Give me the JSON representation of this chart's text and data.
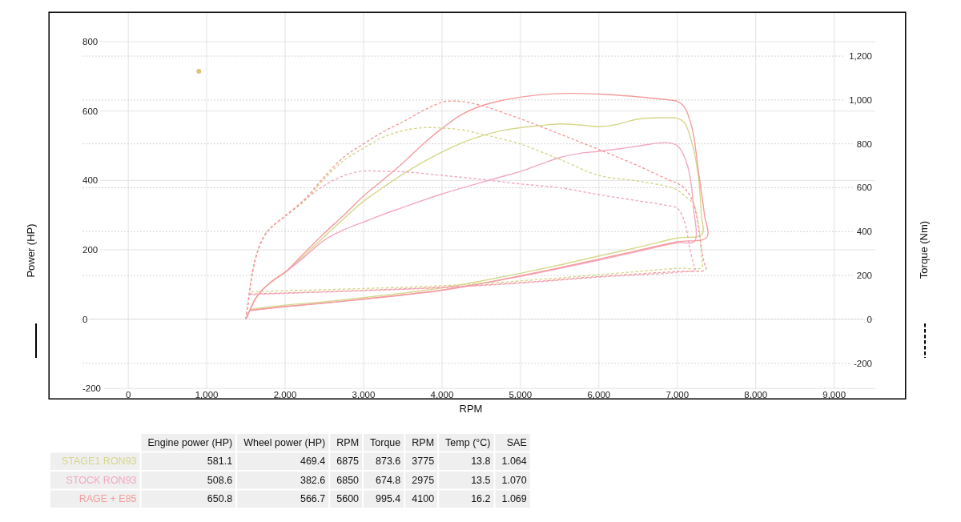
{
  "chart_data": {
    "type": "line",
    "xlabel": "RPM",
    "ylabel": "Power (HP)",
    "y2label": "Torque (Nm)",
    "xlim": [
      -1010,
      9910
    ],
    "xticks": [
      0,
      {
        "value": 1000,
        "label": "1,000"
      },
      {
        "value": 2000,
        "label": "2,000"
      },
      {
        "value": 3000,
        "label": "3,000"
      },
      {
        "value": 4000,
        "label": "4,000"
      },
      {
        "value": 5000,
        "label": "5,000"
      },
      {
        "value": 6000,
        "label": "6,000"
      },
      {
        "value": 7000,
        "label": "7,000"
      },
      {
        "value": 8000,
        "label": "8,000"
      },
      {
        "value": 9000,
        "label": "9,000"
      }
    ],
    "ylim": [
      -230,
      885
    ],
    "yticks": [
      -200,
      0,
      200,
      400,
      600,
      800
    ],
    "y2lim": [
      -363,
      1400
    ],
    "y2ticks": [
      -200,
      0,
      200,
      400,
      600,
      800,
      {
        "value": 1000,
        "label": "1,000"
      },
      {
        "value": 1200,
        "label": "1,200"
      }
    ],
    "grid": true,
    "legend": "bottom",
    "series": [
      {
        "name": "STAGE1 RON93",
        "color": "#d6d78c",
        "line_style": "solid",
        "x": [
          1500,
          1560,
          1620,
          1700,
          1800,
          1900,
          2000,
          2250,
          2500,
          2750,
          3000,
          3250,
          3500,
          3750,
          4000,
          4250,
          4500,
          4750,
          5000,
          5250,
          5500,
          5750,
          6000,
          6200,
          6500,
          6875,
          7000,
          7090,
          7190,
          7270,
          7305,
          7313,
          7000,
          6500,
          6000,
          5500,
          5000,
          4500,
          4000,
          3500,
          3000,
          2500,
          2000,
          1550
        ],
        "values": [
          0,
          30,
          58,
          82,
          103,
          120,
          135,
          185,
          238,
          290,
          340,
          380,
          418,
          452,
          482,
          508,
          528,
          543,
          552,
          558,
          563,
          560,
          555,
          560,
          577,
          581,
          579,
          567,
          505,
          408,
          302,
          244,
          234,
          207,
          182,
          156,
          132,
          110,
          90,
          75,
          62,
          50,
          40,
          28
        ]
      },
      {
        "name": "STOCK RON93",
        "color": "#f2a8c4",
        "line_style": "solid",
        "x": [
          1500,
          1560,
          1620,
          1700,
          1800,
          1900,
          2000,
          2250,
          2500,
          2750,
          3000,
          3250,
          3500,
          3750,
          4000,
          4250,
          4500,
          4750,
          5000,
          5250,
          5500,
          5750,
          6000,
          6250,
          6500,
          6850,
          7000,
          7070,
          7150,
          7207,
          7218,
          7000,
          6500,
          6000,
          5500,
          5000,
          4500,
          4000,
          3500,
          3000,
          2500,
          2000,
          1550
        ],
        "values": [
          0,
          30,
          58,
          82,
          103,
          120,
          135,
          180,
          228,
          258,
          280,
          302,
          322,
          342,
          361,
          378,
          394,
          410,
          426,
          446,
          466,
          478,
          484,
          491,
          499,
          509,
          500,
          478,
          425,
          320,
          224,
          220,
          195,
          170,
          146,
          123,
          102,
          83,
          69,
          57,
          46,
          36,
          25
        ]
      },
      {
        "name": "RAGE + E85",
        "color": "#f49c9c",
        "line_style": "solid",
        "x": [
          1500,
          1560,
          1620,
          1700,
          1800,
          1900,
          2000,
          2250,
          2500,
          2750,
          3000,
          3250,
          3500,
          3750,
          4000,
          4250,
          4500,
          4750,
          5000,
          5250,
          5600,
          6000,
          6500,
          6900,
          7000,
          7090,
          7190,
          7270,
          7345,
          7375,
          7000,
          6500,
          6000,
          5500,
          5000,
          4500,
          4000,
          3500,
          3000,
          2500,
          2000,
          1550
        ],
        "values": [
          0,
          30,
          58,
          82,
          103,
          120,
          135,
          192,
          248,
          300,
          355,
          402,
          450,
          503,
          550,
          590,
          615,
          630,
          640,
          647,
          651,
          649,
          641,
          632,
          628,
          612,
          549,
          425,
          302,
          236,
          223,
          198,
          173,
          148,
          125,
          103,
          84,
          70,
          58,
          46,
          36,
          25
        ]
      },
      {
        "color": "#d6d78c",
        "line_style": "dashed",
        "axis": "y2",
        "x": [
          1500,
          1545,
          1590,
          1660,
          1740,
          1830,
          2000,
          2250,
          2500,
          2750,
          3000,
          3250,
          3500,
          3775,
          4000,
          4250,
          4500,
          5000,
          5500,
          6000,
          6500,
          6900,
          7000,
          7100,
          7200,
          7240,
          7285,
          7310,
          7313,
          7000,
          6000,
          5000,
          4000,
          3000,
          2000,
          1550
        ],
        "values": [
          0,
          120,
          228,
          320,
          383,
          422,
          470,
          540,
          640,
          725,
          780,
          830,
          860,
          874,
          872,
          864,
          845,
          799,
          729,
          656,
          630,
          603,
          589,
          561,
          530,
          490,
          394,
          280,
          237,
          232,
          203,
          175,
          153,
          140,
          130,
          125
        ]
      },
      {
        "color": "#f2a8c4",
        "line_style": "dashed",
        "axis": "y2",
        "x": [
          1500,
          1545,
          1590,
          1660,
          1740,
          1830,
          2000,
          2250,
          2500,
          2750,
          2975,
          3250,
          3500,
          4000,
          4500,
          5000,
          5500,
          6000,
          6500,
          6850,
          7000,
          7100,
          7150,
          7207,
          7227,
          7000,
          6000,
          5000,
          4000,
          3000,
          2000,
          1550
        ],
        "values": [
          0,
          120,
          228,
          320,
          383,
          422,
          470,
          545,
          610,
          655,
          675,
          675,
          673,
          656,
          638,
          617,
          600,
          568,
          540,
          520,
          506,
          436,
          338,
          251,
          227,
          214,
          192,
          165,
          144,
          130,
          118,
          112
        ]
      },
      {
        "color": "#f49c9c",
        "line_style": "dashed",
        "axis": "y2",
        "x": [
          1500,
          1545,
          1590,
          1660,
          1740,
          1830,
          2000,
          2250,
          2500,
          2750,
          3000,
          3250,
          3500,
          3750,
          4000,
          4100,
          4250,
          4500,
          5000,
          5500,
          6000,
          6500,
          6900,
          7000,
          7100,
          7200,
          7260,
          7300,
          7340,
          7364,
          7000,
          6000,
          5000,
          4000,
          3000,
          2000,
          1550
        ],
        "values": [
          0,
          120,
          228,
          320,
          383,
          422,
          470,
          548,
          650,
          740,
          800,
          855,
          900,
          950,
          990,
          995,
          993,
          975,
          914,
          845,
          774,
          700,
          634,
          620,
          595,
          535,
          440,
          340,
          260,
          227,
          218,
          195,
          167,
          146,
          132,
          120,
          115
        ]
      },
      {
        "type": "scatter",
        "color": "#d9c47c",
        "marker": "circle",
        "x": [
          900
        ],
        "values": [
          715
        ]
      }
    ],
    "annotations": [
      "Engine power (HP)",
      "Wheel power (HP)",
      "RPM",
      "Torque",
      "RPM",
      "Temp (°C)",
      "SAE",
      "581.1",
      "469.4",
      "6875",
      "873.6",
      "3775",
      "13.8",
      "1.064",
      "508.6",
      "382.6",
      "6850",
      "674.8",
      "2975",
      "13.5",
      "1.070",
      "650.8",
      "566.7",
      "5600",
      "995.4",
      "4100",
      "16.2",
      "1.069"
    ]
  }
}
